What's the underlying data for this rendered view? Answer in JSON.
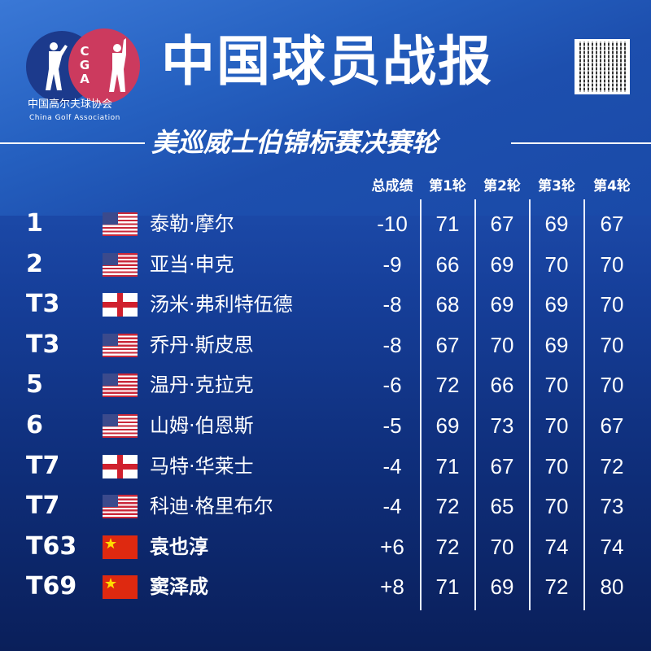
{
  "logo": {
    "initials": "CGA",
    "name_cn": "中国高尔夫球协会",
    "name_en": "China Golf Association"
  },
  "header": {
    "title": "中国球员战报",
    "subtitle": "美巡威士伯锦标赛决赛轮"
  },
  "colors": {
    "background": "#163f9a",
    "accent_line": "#ffffff"
  },
  "columns": [
    "总成绩",
    "第1轮",
    "第2轮",
    "第3轮",
    "第4轮"
  ],
  "rows": [
    {
      "pos": "1",
      "flag": "us",
      "name": "泰勒·摩尔",
      "total": "-10",
      "r": [
        "71",
        "67",
        "69",
        "67"
      ]
    },
    {
      "pos": "2",
      "flag": "us",
      "name": "亚当·申克",
      "total": "-9",
      "r": [
        "66",
        "69",
        "70",
        "70"
      ]
    },
    {
      "pos": "T3",
      "flag": "en",
      "name": "汤米·弗利特伍德",
      "total": "-8",
      "r": [
        "68",
        "69",
        "69",
        "70"
      ]
    },
    {
      "pos": "T3",
      "flag": "us",
      "name": "乔丹·斯皮思",
      "total": "-8",
      "r": [
        "67",
        "70",
        "69",
        "70"
      ]
    },
    {
      "pos": "5",
      "flag": "us",
      "name": "温丹·克拉克",
      "total": "-6",
      "r": [
        "72",
        "66",
        "70",
        "70"
      ]
    },
    {
      "pos": "6",
      "flag": "us",
      "name": "山姆·伯恩斯",
      "total": "-5",
      "r": [
        "69",
        "73",
        "70",
        "67"
      ]
    },
    {
      "pos": "T7",
      "flag": "en",
      "name": "马特·华莱士",
      "total": "-4",
      "r": [
        "71",
        "67",
        "70",
        "72"
      ]
    },
    {
      "pos": "T7",
      "flag": "us",
      "name": "科迪·格里布尔",
      "total": "-4",
      "r": [
        "72",
        "65",
        "70",
        "73"
      ]
    },
    {
      "pos": "T63",
      "flag": "cn",
      "name": "袁也淳",
      "total": "+6",
      "r": [
        "72",
        "70",
        "74",
        "74"
      ]
    },
    {
      "pos": "T69",
      "flag": "cn",
      "name": "窦泽成",
      "total": "+8",
      "r": [
        "71",
        "69",
        "72",
        "80"
      ]
    }
  ]
}
